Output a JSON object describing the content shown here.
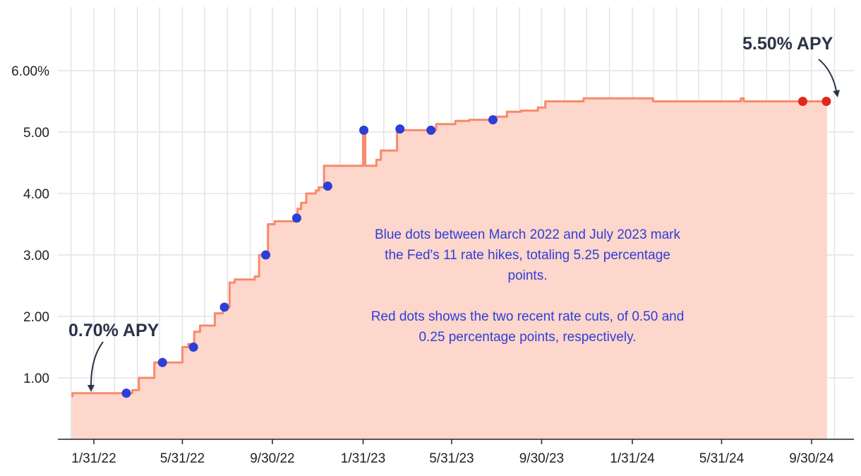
{
  "chart_data": {
    "type": "area",
    "title": "",
    "xlabel": "",
    "ylabel": "",
    "xlim": [
      "2022-01-01",
      "2024-10-31"
    ],
    "ylim": [
      0,
      6.5
    ],
    "grid": true,
    "x_ticks": [
      {
        "date": "2022-01-31",
        "label": "1/31/22"
      },
      {
        "date": "2022-05-31",
        "label": "5/31/22"
      },
      {
        "date": "2022-09-30",
        "label": "9/30/22"
      },
      {
        "date": "2023-01-31",
        "label": "1/31/23"
      },
      {
        "date": "2023-05-31",
        "label": "5/31/23"
      },
      {
        "date": "2023-09-30",
        "label": "9/30/23"
      },
      {
        "date": "2024-01-31",
        "label": "1/31/24"
      },
      {
        "date": "2024-05-31",
        "label": "5/31/24"
      },
      {
        "date": "2024-09-30",
        "label": "9/30/24"
      }
    ],
    "y_ticks": [
      {
        "value": 1,
        "label": "1.00"
      },
      {
        "value": 2,
        "label": "2.00"
      },
      {
        "value": 3,
        "label": "3.00"
      },
      {
        "value": 4,
        "label": "4.00"
      },
      {
        "value": 5,
        "label": "5.00"
      },
      {
        "value": 6,
        "label": "6.00%"
      }
    ],
    "series": [
      {
        "color": "#f78a6b",
        "fill": "#fdd6cc",
        "step_points": [
          [
            "2022-01-01",
            0.7
          ],
          [
            "2022-01-02",
            0.75
          ],
          [
            "2022-03-24",
            0.8
          ],
          [
            "2022-04-02",
            1.0
          ],
          [
            "2022-04-23",
            1.25
          ],
          [
            "2022-05-31",
            1.5
          ],
          [
            "2022-06-08",
            1.55
          ],
          [
            "2022-06-16",
            1.75
          ],
          [
            "2022-06-24",
            1.85
          ],
          [
            "2022-07-14",
            2.05
          ],
          [
            "2022-07-25",
            2.15
          ],
          [
            "2022-08-03",
            2.55
          ],
          [
            "2022-08-10",
            2.6
          ],
          [
            "2022-09-06",
            2.65
          ],
          [
            "2022-09-12",
            3.0
          ],
          [
            "2022-09-24",
            3.5
          ],
          [
            "2022-10-03",
            3.55
          ],
          [
            "2022-10-31",
            3.6
          ],
          [
            "2022-11-03",
            3.75
          ],
          [
            "2022-11-08",
            3.85
          ],
          [
            "2022-11-15",
            4.0
          ],
          [
            "2022-11-28",
            4.05
          ],
          [
            "2022-12-02",
            4.1
          ],
          [
            "2022-12-09",
            4.45
          ],
          [
            "2023-01-28",
            4.45
          ],
          [
            "2023-01-31",
            5.05
          ],
          [
            "2023-02-03",
            4.45
          ],
          [
            "2023-02-18",
            4.55
          ],
          [
            "2023-02-24",
            4.7
          ],
          [
            "2023-03-18",
            5.05
          ],
          [
            "2023-03-27",
            5.03
          ],
          [
            "2023-05-10",
            5.13
          ],
          [
            "2023-06-05",
            5.18
          ],
          [
            "2023-06-24",
            5.2
          ],
          [
            "2023-07-27",
            5.25
          ],
          [
            "2023-08-14",
            5.33
          ],
          [
            "2023-09-02",
            5.35
          ],
          [
            "2023-09-25",
            5.4
          ],
          [
            "2023-10-05",
            5.5
          ],
          [
            "2023-11-26",
            5.55
          ],
          [
            "2024-02-28",
            5.5
          ],
          [
            "2024-06-26",
            5.55
          ],
          [
            "2024-06-30",
            5.5
          ],
          [
            "2024-10-21",
            5.5
          ]
        ]
      }
    ],
    "markers": [
      {
        "date": "2022-03-16",
        "value": 0.75,
        "color": "#2b3fd6"
      },
      {
        "date": "2022-05-04",
        "value": 1.25,
        "color": "#2b3fd6"
      },
      {
        "date": "2022-06-15",
        "value": 1.5,
        "color": "#2b3fd6"
      },
      {
        "date": "2022-07-27",
        "value": 2.15,
        "color": "#2b3fd6"
      },
      {
        "date": "2022-09-21",
        "value": 3.0,
        "color": "#2b3fd6"
      },
      {
        "date": "2022-11-02",
        "value": 3.6,
        "color": "#2b3fd6"
      },
      {
        "date": "2022-12-14",
        "value": 4.12,
        "color": "#2b3fd6"
      },
      {
        "date": "2023-02-01",
        "value": 5.03,
        "color": "#2b3fd6"
      },
      {
        "date": "2023-03-22",
        "value": 5.05,
        "color": "#2b3fd6"
      },
      {
        "date": "2023-05-03",
        "value": 5.03,
        "color": "#2b3fd6"
      },
      {
        "date": "2023-07-26",
        "value": 5.2,
        "color": "#2b3fd6"
      },
      {
        "date": "2024-09-18",
        "value": 5.5,
        "color": "#e2261c"
      },
      {
        "date": "2024-10-20",
        "value": 5.5,
        "color": "#e2261c"
      }
    ],
    "annotations": [
      {
        "text": "0.70% APY",
        "anchor_date": "2022-01-31",
        "anchor_value": 0.7
      },
      {
        "text": "5.50% APY",
        "anchor_date": "2024-10-20",
        "anchor_value": 5.5
      }
    ],
    "notes": [
      "Blue dots between March 2022 and July 2023 mark the Fed's 11 rate hikes, totaling 5.25 percentage points.",
      "Red dots shows the two recent rate cuts, of 0.50 and 0.25 percentage points, respectively."
    ]
  }
}
